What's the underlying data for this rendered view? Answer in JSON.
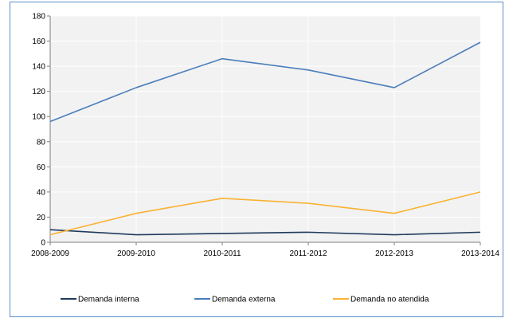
{
  "chart_data": {
    "type": "line",
    "title": "",
    "xlabel": "",
    "ylabel": "",
    "categories": [
      "2008-2009",
      "2009-2010",
      "2010-2011",
      "2011-2012",
      "2012-2013",
      "2013-2014"
    ],
    "ylim": [
      0,
      180
    ],
    "yticks": [
      0,
      20,
      40,
      60,
      80,
      100,
      120,
      140,
      160,
      180
    ],
    "grid": true,
    "legend_position": "bottom",
    "series": [
      {
        "name": "Demanda interna",
        "color": "#1f3b5c",
        "values": [
          10,
          6,
          7,
          8,
          6,
          8
        ]
      },
      {
        "name": "Demanda externa",
        "color": "#4a7ebb",
        "values": [
          96,
          123,
          146,
          137,
          123,
          159
        ]
      },
      {
        "name": "Demanda no atendida",
        "color": "#f9b233",
        "values": [
          6,
          23,
          35,
          31,
          23,
          40
        ]
      }
    ]
  }
}
